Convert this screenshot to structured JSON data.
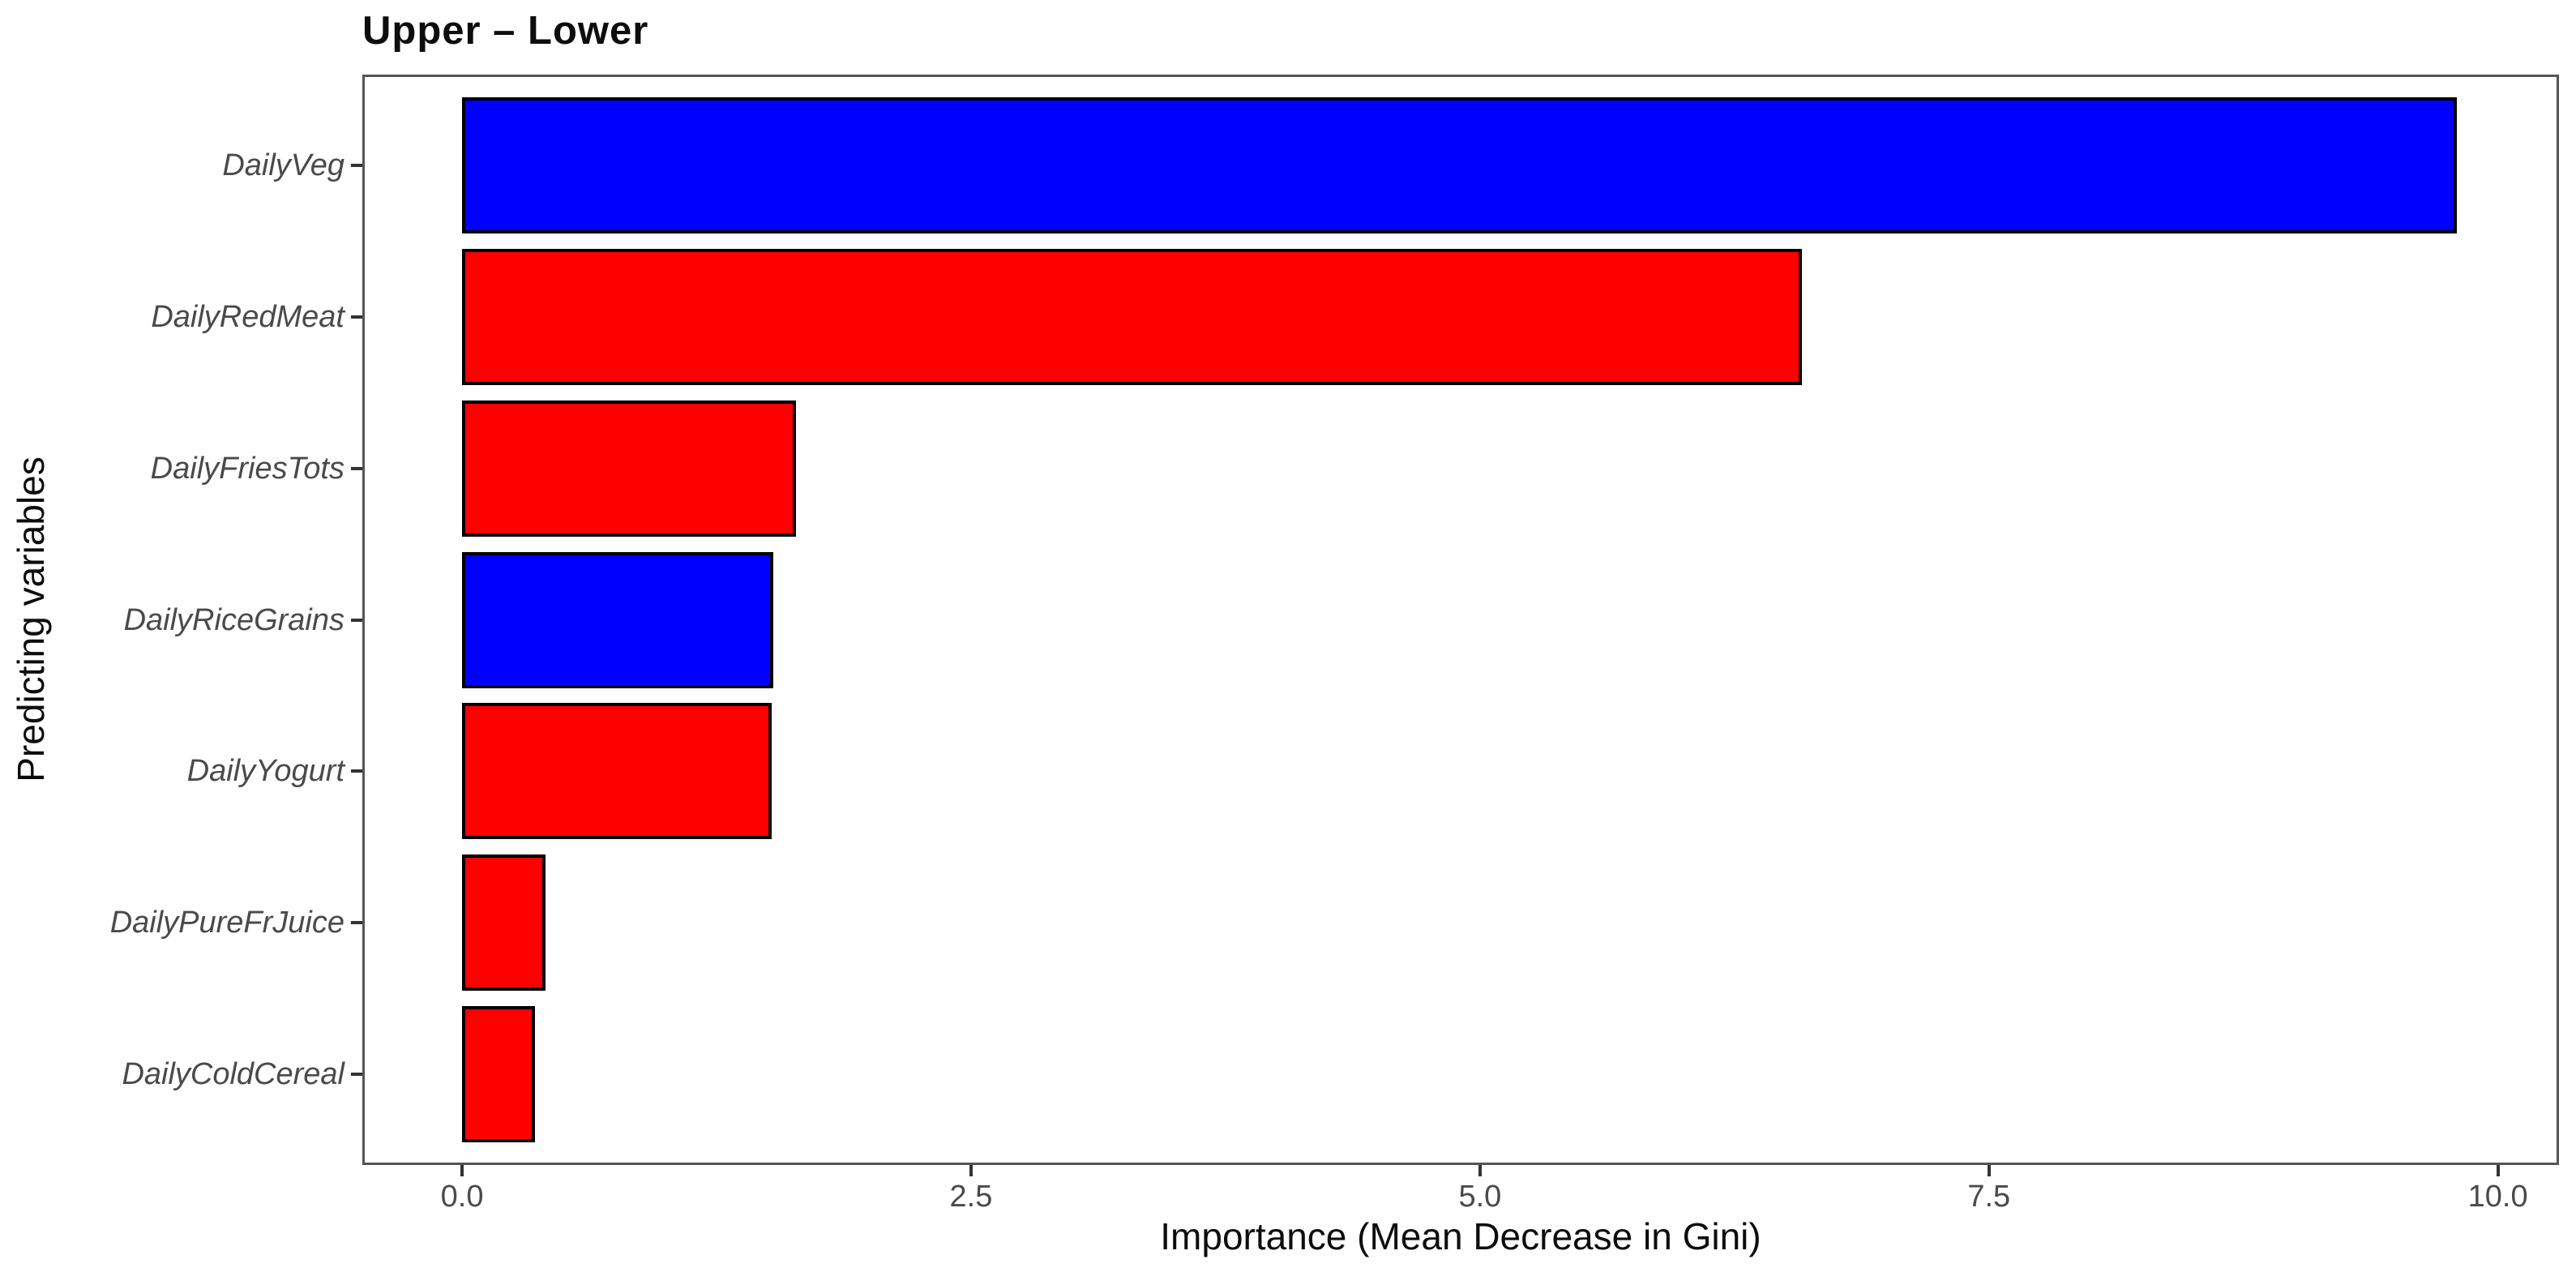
{
  "chart_data": {
    "type": "bar",
    "orientation": "horizontal",
    "title": "Upper – Lower",
    "xlabel": "Importance (Mean Decrease in Gini)",
    "ylabel": "Predicting variables",
    "categories": [
      "DailyVeg",
      "DailyRedMeat",
      "DailyFriesTots",
      "DailyRiceGrains",
      "DailyYogurt",
      "DailyPureFrJuice",
      "DailyColdCereal"
    ],
    "values": [
      9.8,
      6.58,
      1.64,
      1.53,
      1.52,
      0.41,
      0.36
    ],
    "bar_colors": [
      "#0000FF",
      "#FF0000",
      "#FF0000",
      "#0000FF",
      "#FF0000",
      "#FF0000",
      "#FF0000"
    ],
    "x_ticks": [
      0.0,
      2.5,
      5.0,
      7.5,
      10.0
    ],
    "x_tick_labels": [
      "0.0",
      "2.5",
      "5.0",
      "7.5",
      "10.0"
    ],
    "xlim": [
      -0.49,
      10.3
    ],
    "grid": false,
    "legend_position": "none",
    "styles": {
      "bar_border_color": "#000000",
      "panel_border_color": "#555555",
      "axis_text_color": "#4a4a4a",
      "title_color": "#0d0d0d",
      "background": "#FFFFFF"
    }
  }
}
